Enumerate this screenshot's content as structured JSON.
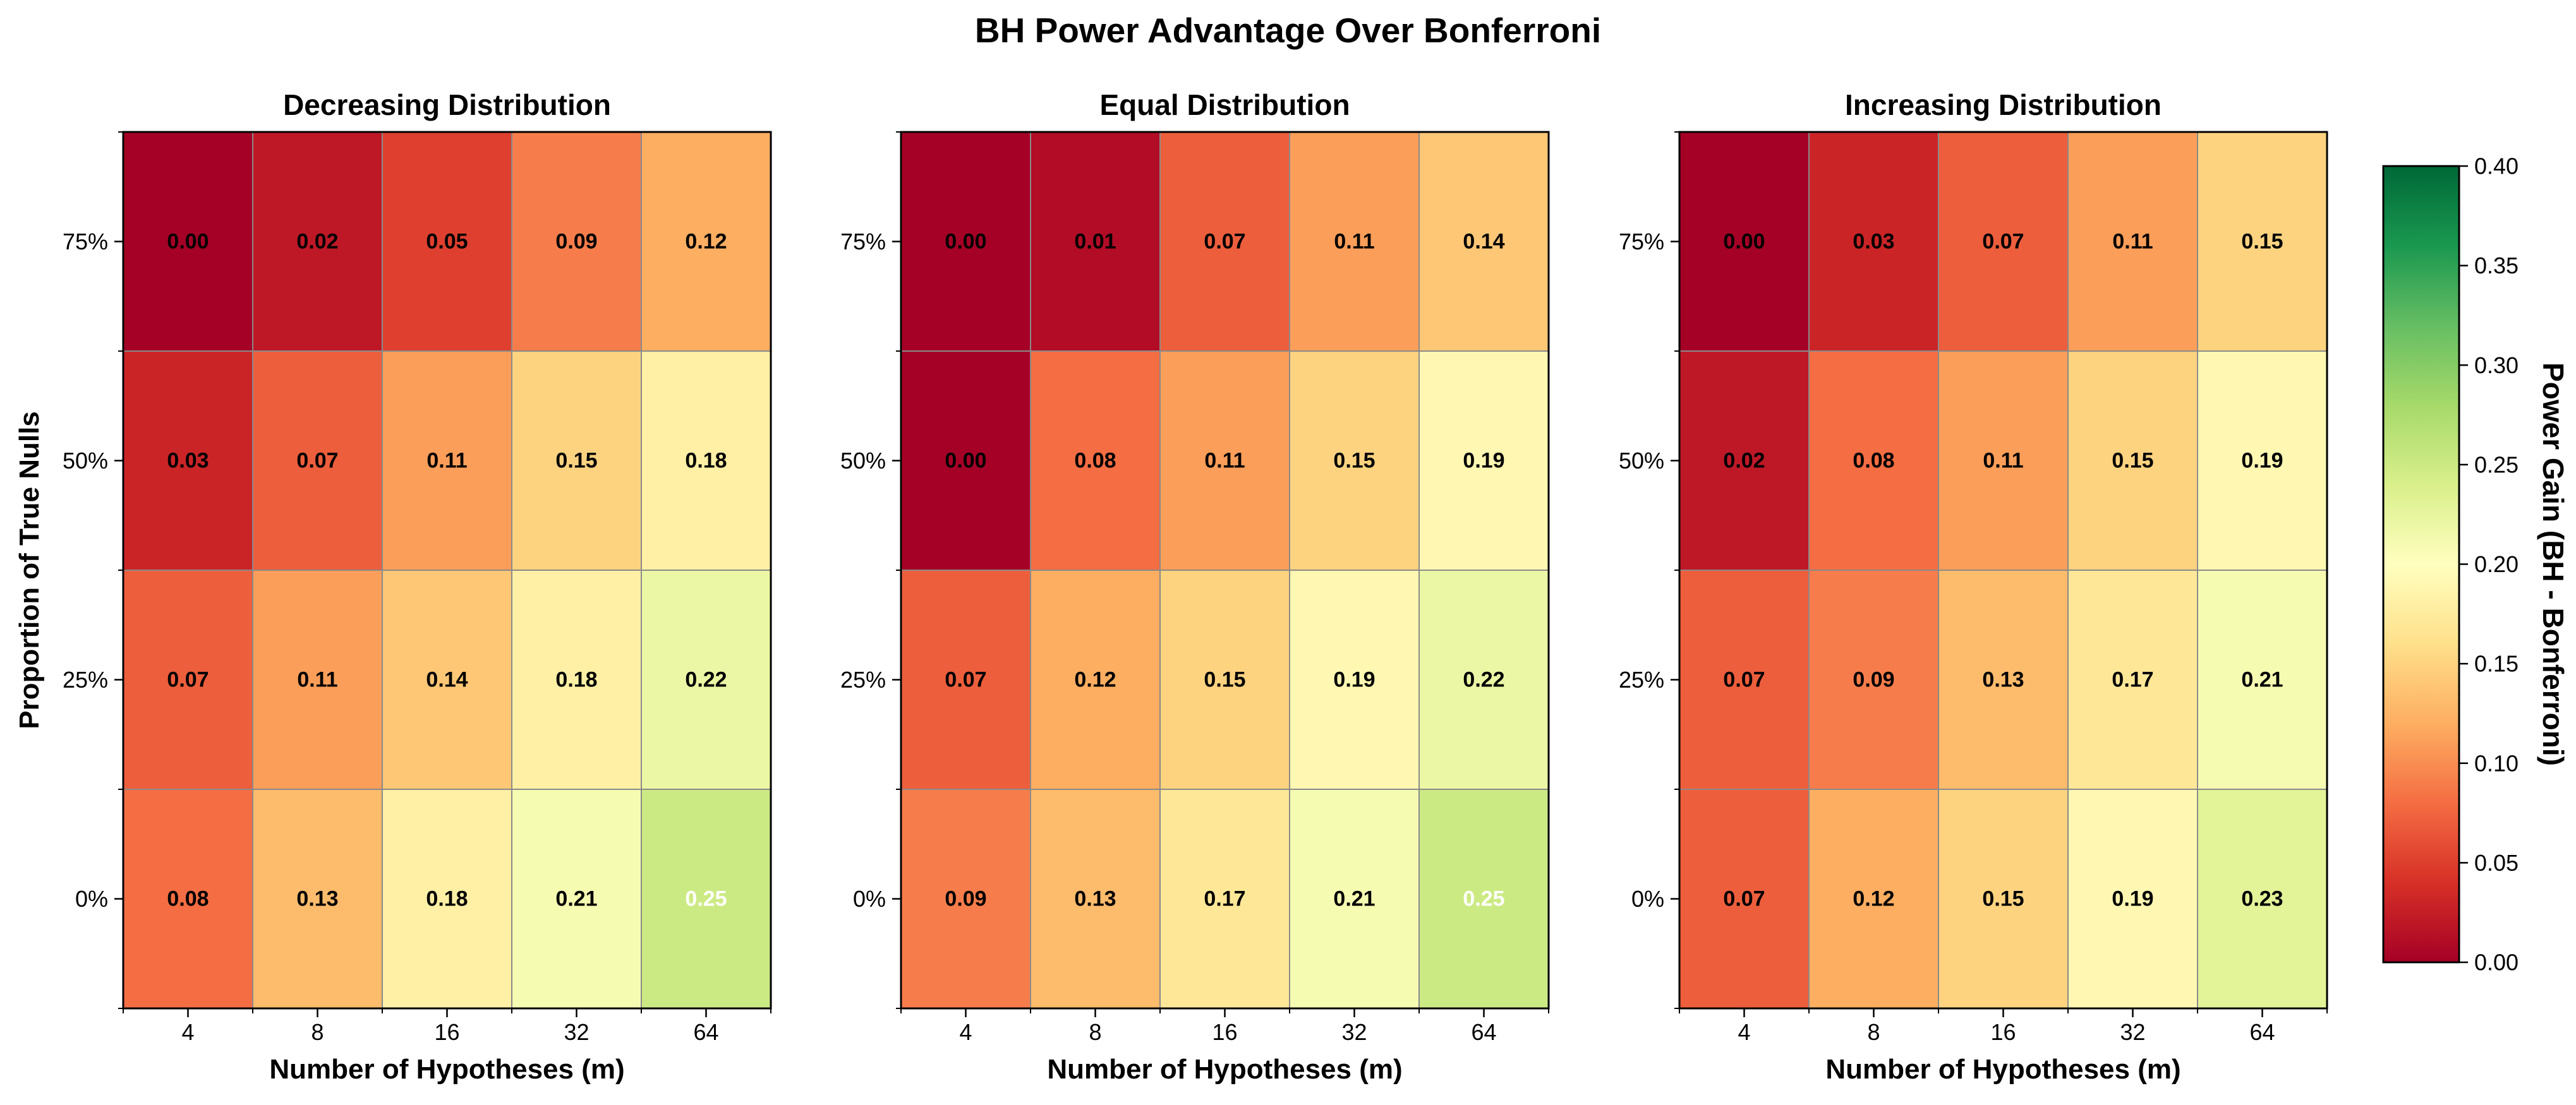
{
  "figure": {
    "title": "BH Power Advantage Over Bonferroni"
  },
  "chart_data": [
    {
      "type": "heatmap",
      "title": "Decreasing Distribution",
      "xlabel": "Number of Hypotheses (m)",
      "ylabel": "Proportion of True Nulls",
      "x_categories": [
        "4",
        "8",
        "16",
        "32",
        "64"
      ],
      "y_categories": [
        "75%",
        "50%",
        "25%",
        "0%"
      ],
      "values": [
        [
          0.0,
          0.02,
          0.05,
          0.09,
          0.12
        ],
        [
          0.03,
          0.07,
          0.11,
          0.15,
          0.18
        ],
        [
          0.07,
          0.11,
          0.14,
          0.18,
          0.22
        ],
        [
          0.08,
          0.13,
          0.18,
          0.21,
          0.25
        ]
      ],
      "cell_labels": [
        [
          "0.00",
          "0.02",
          "0.05",
          "0.09",
          "0.12"
        ],
        [
          "0.03",
          "0.07",
          "0.11",
          "0.15",
          "0.18"
        ],
        [
          "0.07",
          "0.11",
          "0.14",
          "0.18",
          "0.22"
        ],
        [
          "0.08",
          "0.13",
          "0.18",
          "0.21",
          "0.25"
        ]
      ]
    },
    {
      "type": "heatmap",
      "title": "Equal Distribution",
      "xlabel": "Number of Hypotheses (m)",
      "ylabel": "",
      "x_categories": [
        "4",
        "8",
        "16",
        "32",
        "64"
      ],
      "y_categories": [
        "75%",
        "50%",
        "25%",
        "0%"
      ],
      "values": [
        [
          0.0,
          0.01,
          0.07,
          0.11,
          0.14
        ],
        [
          0.0,
          0.08,
          0.11,
          0.15,
          0.19
        ],
        [
          0.07,
          0.12,
          0.15,
          0.19,
          0.22
        ],
        [
          0.09,
          0.13,
          0.17,
          0.21,
          0.25
        ]
      ],
      "cell_labels": [
        [
          "0.00",
          "0.01",
          "0.07",
          "0.11",
          "0.14"
        ],
        [
          "0.00",
          "0.08",
          "0.11",
          "0.15",
          "0.19"
        ],
        [
          "0.07",
          "0.12",
          "0.15",
          "0.19",
          "0.22"
        ],
        [
          "0.09",
          "0.13",
          "0.17",
          "0.21",
          "0.25"
        ]
      ]
    },
    {
      "type": "heatmap",
      "title": "Increasing Distribution",
      "xlabel": "Number of Hypotheses (m)",
      "ylabel": "",
      "x_categories": [
        "4",
        "8",
        "16",
        "32",
        "64"
      ],
      "y_categories": [
        "75%",
        "50%",
        "25%",
        "0%"
      ],
      "values": [
        [
          0.0,
          0.03,
          0.07,
          0.11,
          0.15
        ],
        [
          0.02,
          0.08,
          0.11,
          0.15,
          0.19
        ],
        [
          0.07,
          0.09,
          0.13,
          0.17,
          0.21
        ],
        [
          0.07,
          0.12,
          0.15,
          0.19,
          0.23
        ]
      ],
      "cell_labels": [
        [
          "0.00",
          "0.03",
          "0.07",
          "0.11",
          "0.15"
        ],
        [
          "0.02",
          "0.08",
          "0.11",
          "0.15",
          "0.19"
        ],
        [
          "0.07",
          "0.09",
          "0.13",
          "0.17",
          "0.21"
        ],
        [
          "0.07",
          "0.12",
          "0.15",
          "0.19",
          "0.23"
        ]
      ]
    }
  ],
  "colorbar": {
    "label": "Power Gain (BH - Bonferroni)",
    "colormap": "RdYlGn",
    "range": [
      0.0,
      0.4
    ],
    "ticks": [
      "0.00",
      "0.05",
      "0.10",
      "0.15",
      "0.20",
      "0.25",
      "0.30",
      "0.35",
      "0.40"
    ],
    "tick_values": [
      0.0,
      0.05,
      0.1,
      0.15,
      0.2,
      0.25,
      0.3,
      0.35,
      0.4
    ],
    "colors": [
      "#a50026",
      "#d73027",
      "#f46d43",
      "#fdae61",
      "#fee08b",
      "#ffffbf",
      "#d9ef8b",
      "#a6d96a",
      "#66bd63",
      "#1a9850",
      "#006837"
    ]
  }
}
